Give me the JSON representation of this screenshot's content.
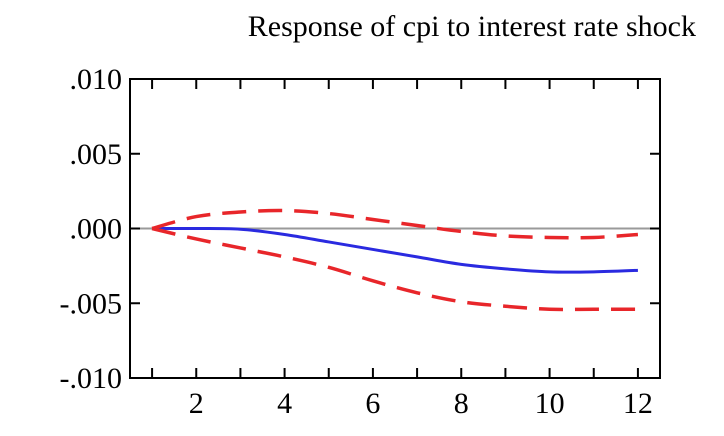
{
  "chart_data": {
    "type": "line",
    "title": "Response of cpi to interest rate shock",
    "xlabel": "",
    "ylabel": "",
    "xlim": [
      0.5,
      12.5
    ],
    "ylim": [
      -0.01,
      0.01
    ],
    "x_ticks": [
      2,
      4,
      6,
      8,
      10,
      12
    ],
    "x_tick_labels": [
      "2",
      "4",
      "6",
      "8",
      "10",
      "12"
    ],
    "y_ticks": [
      0.01,
      0.005,
      0.0,
      -0.005,
      -0.01
    ],
    "y_tick_labels": [
      ".010",
      ".005",
      ".000",
      "-.005",
      "-.010"
    ],
    "grid": false,
    "x": [
      1,
      2,
      3,
      4,
      5,
      6,
      7,
      8,
      9,
      10,
      11,
      12
    ],
    "series": [
      {
        "role": "response",
        "color": "#2a2ae0",
        "dash": "solid",
        "values": [
          0.0,
          0.0,
          -5e-05,
          -0.0004,
          -0.0009,
          -0.0014,
          -0.0019,
          -0.0024,
          -0.0027,
          -0.0029,
          -0.0029,
          -0.0028
        ]
      },
      {
        "role": "upper-band",
        "color": "#e8262a",
        "dash": "dashed",
        "values": [
          0.0,
          0.0008,
          0.0011,
          0.0012,
          0.001,
          0.0006,
          0.0002,
          -0.0002,
          -0.0005,
          -0.0006,
          -0.0006,
          -0.0004
        ]
      },
      {
        "role": "lower-band",
        "color": "#e8262a",
        "dash": "dashed",
        "values": [
          0.0,
          -0.0007,
          -0.0013,
          -0.0019,
          -0.0026,
          -0.0035,
          -0.0043,
          -0.0049,
          -0.0052,
          -0.0054,
          -0.0054,
          -0.0054
        ]
      }
    ],
    "zero_line_color": "#9a9a9a"
  }
}
